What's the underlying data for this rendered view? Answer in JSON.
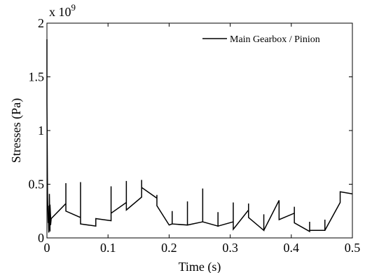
{
  "chart_data": {
    "type": "line",
    "title": "",
    "xlabel": "Time (s)",
    "ylabel": "Stresses (Pa)",
    "xlim": [
      0,
      0.5
    ],
    "ylim": [
      0,
      2
    ],
    "y_exponent_label": "x 10",
    "y_exponent_power": "9",
    "x_ticks": [
      0,
      0.1,
      0.2,
      0.3,
      0.4,
      0.5
    ],
    "x_tick_labels": [
      "0",
      "0.1",
      "0.2",
      "0.3",
      "0.4",
      "0.5"
    ],
    "y_ticks": [
      0,
      0.5,
      1,
      1.5,
      2
    ],
    "y_tick_labels": [
      "0",
      "0.5",
      "1",
      "1.5",
      "2"
    ],
    "grid": false,
    "legend_position": "top-right",
    "series": [
      {
        "name": "Main Gearbox / Pinion",
        "color": "#000000",
        "points": [
          [
            0,
            1.85
          ],
          [
            0,
            1.26
          ],
          [
            0.001,
            0.38
          ],
          [
            0.002,
            0.14
          ],
          [
            0.002,
            0.3
          ],
          [
            0.003,
            0.05
          ],
          [
            0.003,
            0.23
          ],
          [
            0.004,
            0.08
          ],
          [
            0.004,
            0.41
          ],
          [
            0.005,
            0.06
          ],
          [
            0.005,
            0.31
          ],
          [
            0.006,
            0.2
          ],
          [
            0.006,
            0.12
          ],
          [
            0.007,
            0.18
          ],
          [
            0.031,
            0.32
          ],
          [
            0.031,
            0.51
          ],
          [
            0.031,
            0.25
          ],
          [
            0.055,
            0.19
          ],
          [
            0.055,
            0.52
          ],
          [
            0.055,
            0.13
          ],
          [
            0.08,
            0.11
          ],
          [
            0.08,
            0.18
          ],
          [
            0.105,
            0.16
          ],
          [
            0.105,
            0.48
          ],
          [
            0.105,
            0.23
          ],
          [
            0.13,
            0.33
          ],
          [
            0.13,
            0.53
          ],
          [
            0.13,
            0.26
          ],
          [
            0.155,
            0.38
          ],
          [
            0.155,
            0.54
          ],
          [
            0.155,
            0.47
          ],
          [
            0.18,
            0.37
          ],
          [
            0.18,
            0.4
          ],
          [
            0.18,
            0.3
          ],
          [
            0.2,
            0.12
          ],
          [
            0.205,
            0.13
          ],
          [
            0.205,
            0.25
          ],
          [
            0.205,
            0.13
          ],
          [
            0.23,
            0.12
          ],
          [
            0.23,
            0.34
          ],
          [
            0.23,
            0.12
          ],
          [
            0.255,
            0.15
          ],
          [
            0.255,
            0.46
          ],
          [
            0.255,
            0.15
          ],
          [
            0.28,
            0.11
          ],
          [
            0.28,
            0.24
          ],
          [
            0.28,
            0.11
          ],
          [
            0.305,
            0.15
          ],
          [
            0.305,
            0.33
          ],
          [
            0.305,
            0.08
          ],
          [
            0.33,
            0.26
          ],
          [
            0.33,
            0.32
          ],
          [
            0.33,
            0.19
          ],
          [
            0.355,
            0.07
          ],
          [
            0.355,
            0.22
          ],
          [
            0.355,
            0.07
          ],
          [
            0.38,
            0.35
          ],
          [
            0.38,
            0.17
          ],
          [
            0.405,
            0.23
          ],
          [
            0.405,
            0.29
          ],
          [
            0.405,
            0.14
          ],
          [
            0.43,
            0.06
          ],
          [
            0.43,
            0.15
          ],
          [
            0.43,
            0.07
          ],
          [
            0.455,
            0.07
          ],
          [
            0.455,
            0.17
          ],
          [
            0.455,
            0.07
          ],
          [
            0.48,
            0.33
          ],
          [
            0.48,
            0.43
          ],
          [
            0.5,
            0.41
          ]
        ]
      }
    ]
  }
}
